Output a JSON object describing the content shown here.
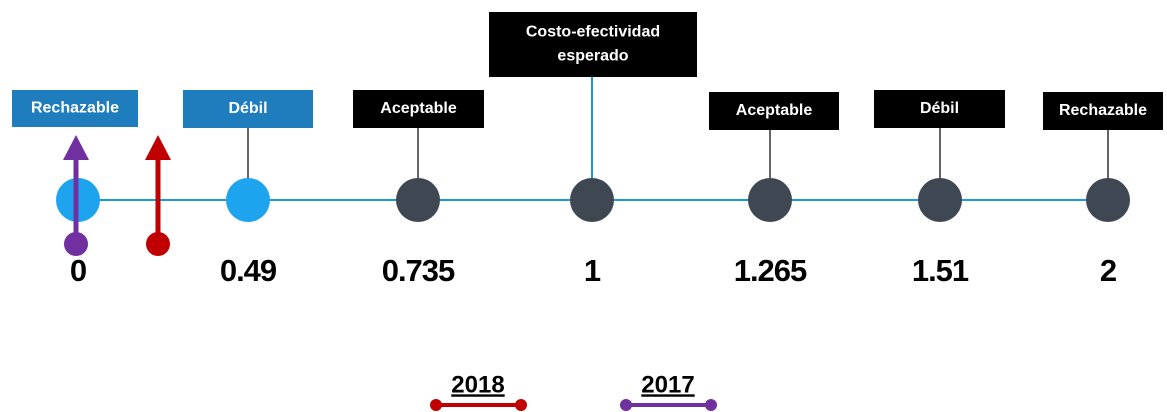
{
  "nodes": [
    {
      "label": [
        "Rechazable"
      ],
      "value": "0",
      "color": "#1ea3ef",
      "box": "#1f7dbd"
    },
    {
      "label": [
        "Débil"
      ],
      "value": "0.49",
      "color": "#1ea3ef",
      "box": "#1f7dbd"
    },
    {
      "label": [
        "Aceptable"
      ],
      "value": "0.735",
      "color": "#3e4752",
      "box": "#000000"
    },
    {
      "label": [
        "Costo-efectividad",
        "esperado"
      ],
      "value": "1",
      "color": "#3e4752",
      "box": "#000000"
    },
    {
      "label": [
        "Aceptable"
      ],
      "value": "1.265",
      "color": "#3e4752",
      "box": "#000000"
    },
    {
      "label": [
        "Débil"
      ],
      "value": "1.51",
      "color": "#3e4752",
      "box": "#000000"
    },
    {
      "label": [
        "Rechazable"
      ],
      "value": "2",
      "color": "#3e4752",
      "box": "#000000"
    }
  ],
  "markers": [
    {
      "year": "2018",
      "color": "#c00000"
    },
    {
      "year": "2017",
      "color": "#7030a0"
    }
  ],
  "line_color": "#1a9bd7"
}
